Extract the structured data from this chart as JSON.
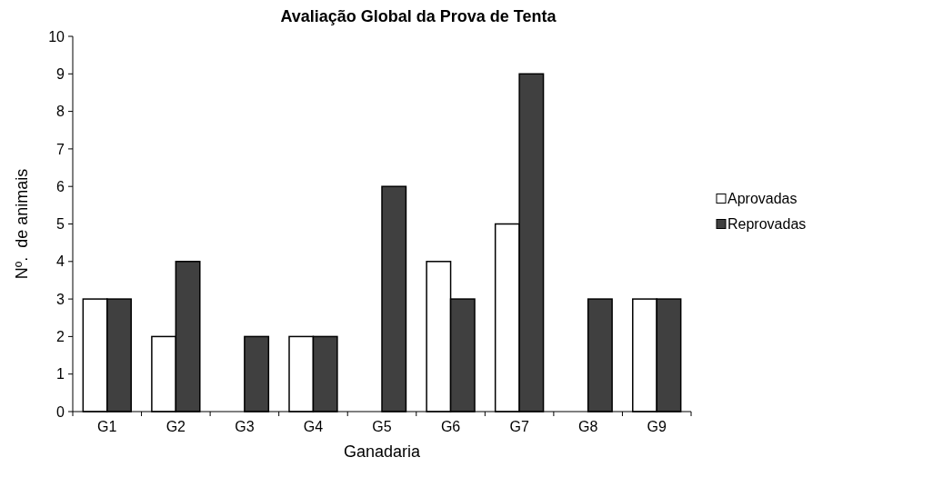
{
  "chart_data": {
    "type": "bar",
    "title": "Avaliação Global da Prova de Tenta",
    "xlabel": "Ganadaria",
    "ylabel": "Nº.  de animais",
    "categories": [
      "G1",
      "G2",
      "G3",
      "G4",
      "G5",
      "G6",
      "G7",
      "G8",
      "G9"
    ],
    "series": [
      {
        "name": "Aprovadas",
        "color": "#ffffff",
        "values": [
          3,
          2,
          0,
          2,
          0,
          4,
          5,
          0,
          3
        ]
      },
      {
        "name": "Reprovadas",
        "color": "#404040",
        "values": [
          3,
          4,
          2,
          2,
          6,
          3,
          9,
          3,
          3
        ]
      }
    ],
    "ylim": [
      0,
      10
    ],
    "yticks": [
      0,
      1,
      2,
      3,
      4,
      5,
      6,
      7,
      8,
      9,
      10
    ],
    "grid": false,
    "legend": "right"
  }
}
